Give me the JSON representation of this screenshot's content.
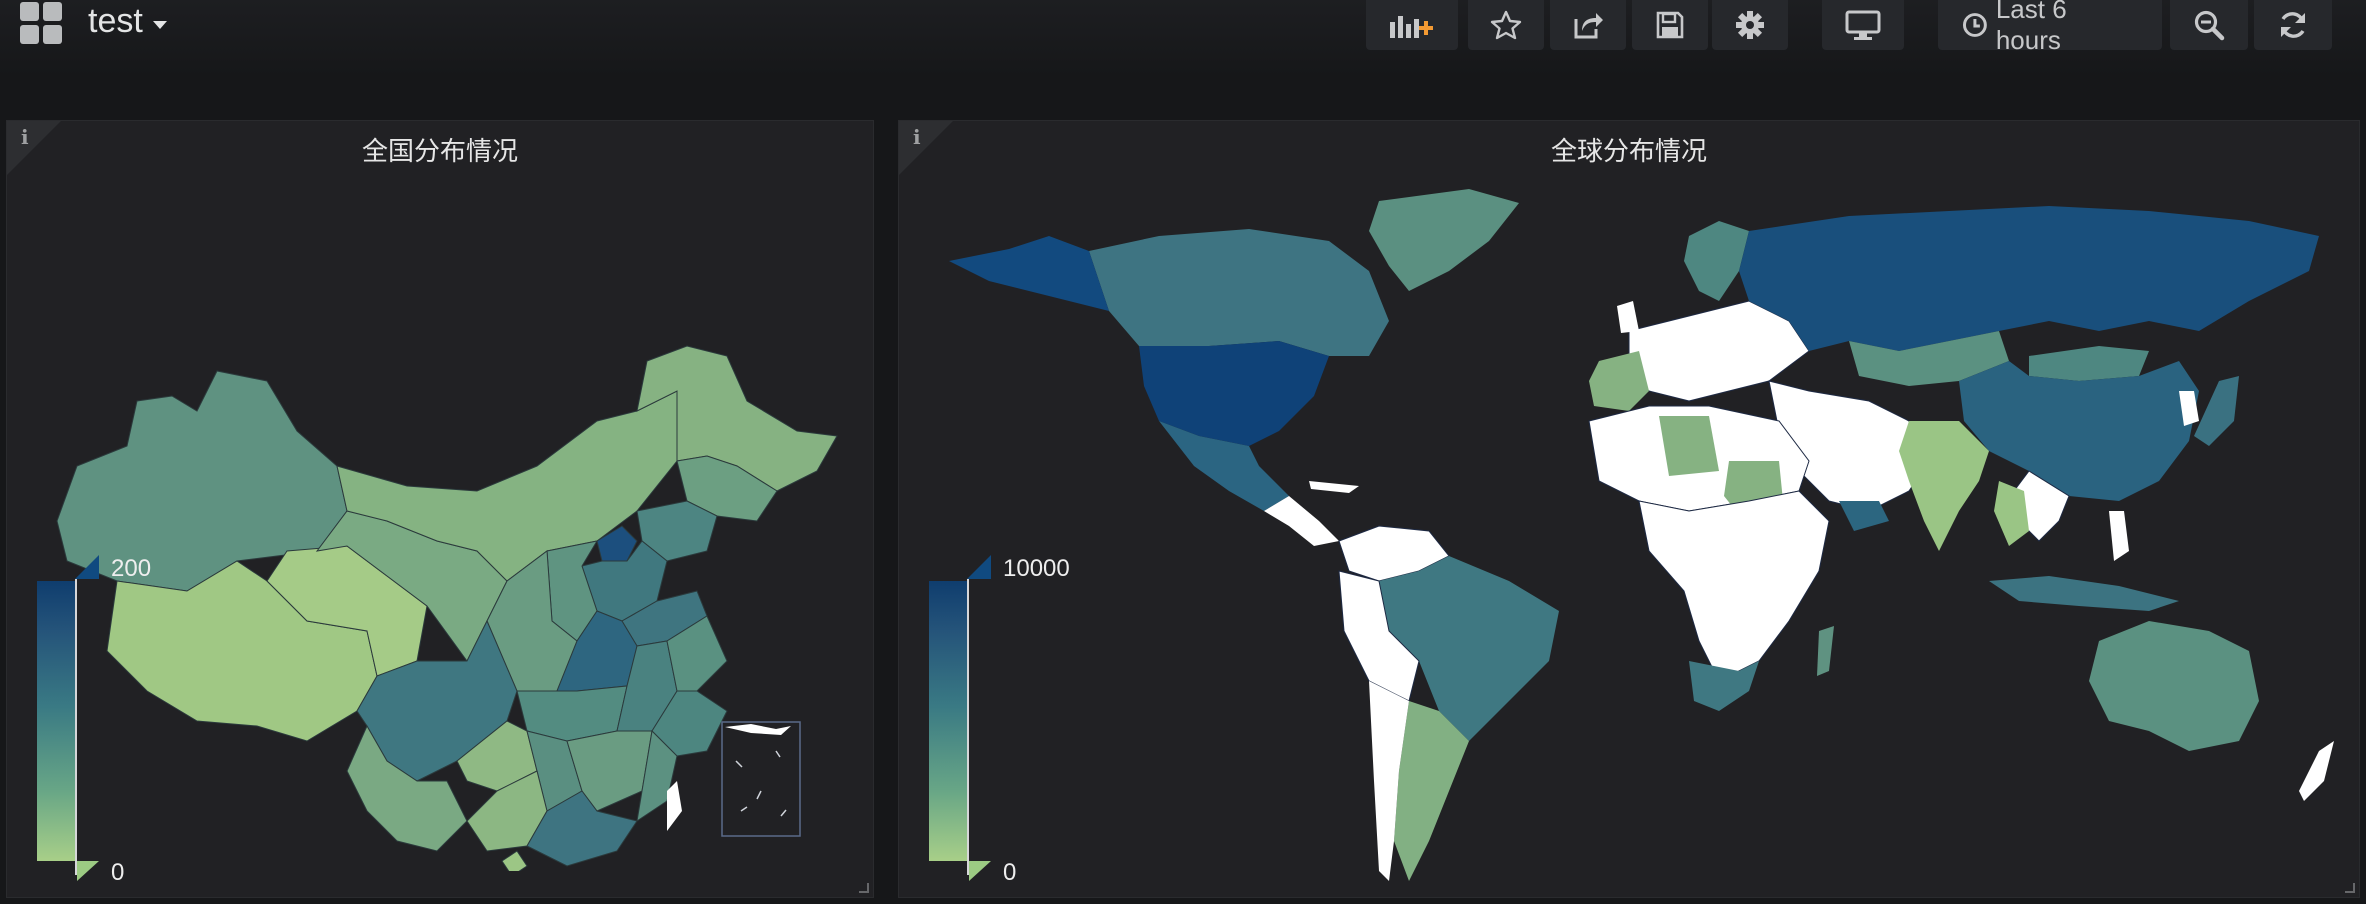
{
  "header": {
    "dashboard_title": "test",
    "time_range_label": "Last 6 hours",
    "icons": [
      "apps-grid-icon",
      "add-panel-icon",
      "star-icon",
      "share-icon",
      "save-icon",
      "settings-icon",
      "tv-mode-icon",
      "clock-icon",
      "zoom-out-icon",
      "refresh-icon"
    ]
  },
  "panels": [
    {
      "title": "全国分布情况",
      "info_label": "i",
      "legend": {
        "max": "200",
        "min": "0"
      }
    },
    {
      "title": "全球分布情况",
      "info_label": "i",
      "legend": {
        "max": "10000",
        "min": "0"
      }
    }
  ],
  "colors": {
    "background": "#161719",
    "panel": "#212124",
    "scale_high": "#0f3d6e",
    "scale_mid": "#3a7a84",
    "scale_low": "#a8cf88",
    "no_data": "#ffffff",
    "accent_orange": "#f39a33"
  }
}
